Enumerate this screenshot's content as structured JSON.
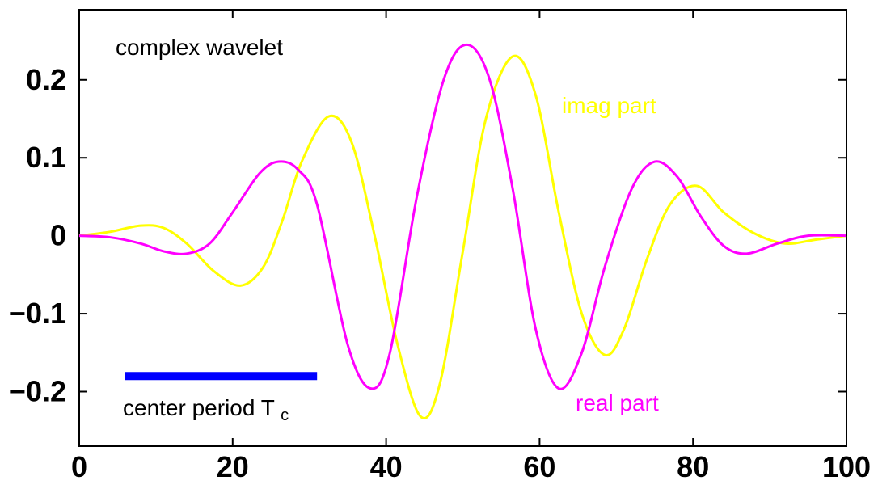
{
  "chart_data": {
    "type": "line",
    "title": "",
    "xlabel": "",
    "ylabel": "",
    "xlim": [
      0,
      100
    ],
    "ylim": [
      -0.27,
      0.29
    ],
    "x_ticks": [
      0,
      20,
      40,
      60,
      80,
      100
    ],
    "x_tick_labels": [
      "0",
      "20",
      "40",
      "60",
      "80",
      "100"
    ],
    "y_ticks": [
      0.2,
      0.1,
      0,
      -0.1,
      -0.2
    ],
    "y_tick_labels": [
      "0.2",
      "0.1",
      "0",
      "−0.1",
      "−0.2"
    ],
    "grid": false,
    "series": [
      {
        "name": "imag part",
        "color": "#ffff00",
        "x": [
          0,
          4,
          8,
          11,
          14,
          17.5,
          21,
          24,
          26.5,
          29,
          32.5,
          35.5,
          38.5,
          41.5,
          44.5,
          47,
          50,
          53,
          56.5,
          59.5,
          62.5,
          65.5,
          68.5,
          71,
          74,
          77,
          80.5,
          84,
          88,
          92,
          96,
          100
        ],
        "y": [
          0,
          0.005,
          0.013,
          0.01,
          -0.01,
          -0.045,
          -0.064,
          -0.04,
          0.02,
          0.095,
          0.153,
          0.12,
          0,
          -0.14,
          -0.232,
          -0.19,
          -0.02,
          0.15,
          0.23,
          0.18,
          0.03,
          -0.1,
          -0.153,
          -0.12,
          -0.03,
          0.04,
          0.064,
          0.03,
          0.003,
          -0.01,
          -0.005,
          0
        ]
      },
      {
        "name": "real part",
        "color": "#ff00ff",
        "x": [
          0,
          4,
          8,
          11,
          14,
          17,
          20,
          23.5,
          26,
          28.5,
          31,
          35,
          38,
          40.5,
          44,
          47.5,
          50.5,
          53.5,
          56.5,
          59.5,
          62.5,
          65.5,
          68.5,
          72,
          75,
          78,
          81,
          84,
          87,
          91,
          95,
          100
        ],
        "y": [
          0,
          -0.002,
          -0.01,
          -0.02,
          -0.023,
          -0.01,
          0.03,
          0.08,
          0.095,
          0.085,
          0.04,
          -0.14,
          -0.196,
          -0.15,
          0.05,
          0.2,
          0.245,
          0.2,
          0.06,
          -0.12,
          -0.196,
          -0.15,
          -0.04,
          0.06,
          0.095,
          0.075,
          0.025,
          -0.013,
          -0.023,
          -0.01,
          0,
          0
        ]
      }
    ],
    "annotations": {
      "title_text": "complex wavelet",
      "imag_label": "imag part",
      "real_label": "real part",
      "center_label_main": "center period T",
      "center_label_sub": "c"
    },
    "center_period_bar": {
      "color": "#0000ff",
      "x_start": 6,
      "x_end": 31,
      "y": -0.18
    }
  }
}
